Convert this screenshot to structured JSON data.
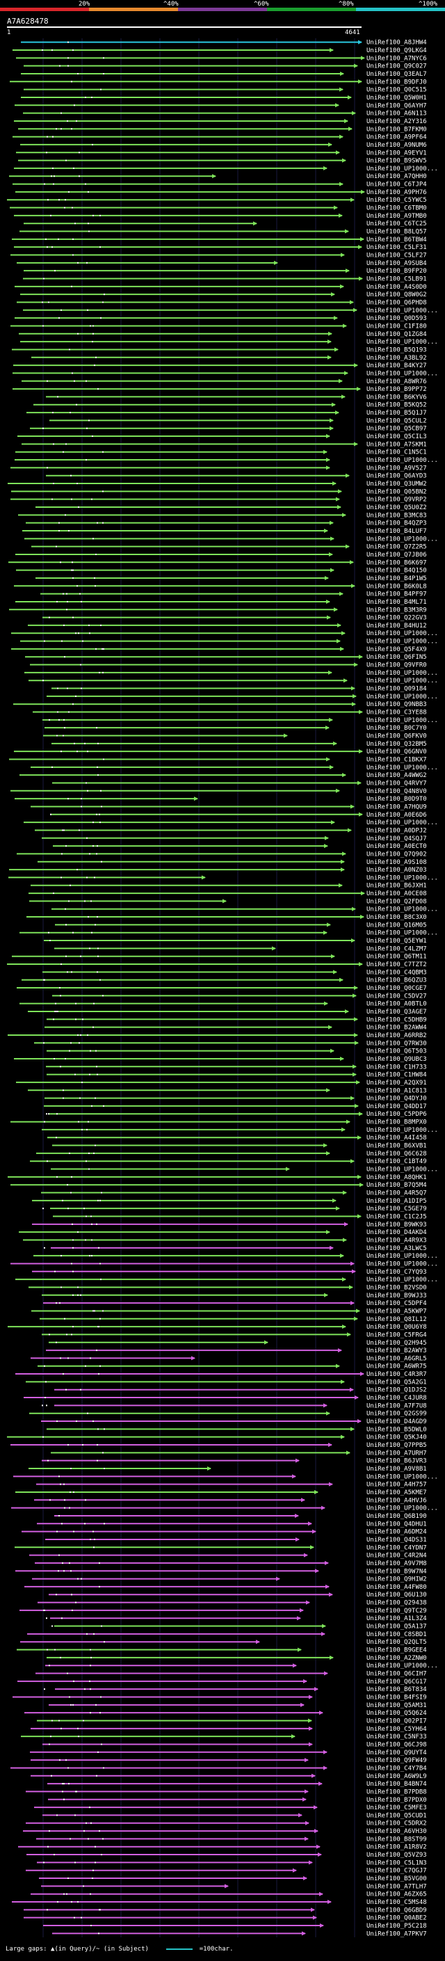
{
  "query": {
    "id": "A7A628478",
    "start": "1",
    "length": "4641"
  },
  "identity_scale": [
    {
      "label": "20%",
      "color": "#d8262a"
    },
    {
      "label": "^40%",
      "color": "#e6892e"
    },
    {
      "label": "^60%",
      "color": "#7d3a97"
    },
    {
      "label": "^80%",
      "color": "#1a9e2f"
    },
    {
      "label": "^100%",
      "color": "#25c2c6"
    }
  ],
  "colors": {
    "cyan": "#2ac8e0",
    "green": "#7ee35a",
    "magenta": "#d25fe0"
  },
  "footer": {
    "gaps_text": "Large gaps: ▲(in Query)/~ (in Subject)",
    "scale_text": "=100char."
  },
  "hits": [
    "UniRef100_A8JHW4",
    "UniRef100_Q9LKG4",
    "UniRef100_A7NYC6",
    "UniRef100_Q9C027",
    "UniRef100_Q3EAL7",
    "UniRef100_B9DFJ0",
    "UniRef100_Q0C515",
    "UniRef100_Q5W0H1",
    "UniRef100_Q6AYH7",
    "UniRef100_A6N113",
    "UniRef100_A2Y316",
    "UniRef100_B7FKM0",
    "UniRef100_A9PF64",
    "UniRef100_A9NUM6",
    "UniRef100_A9EYV1",
    "UniRef100_B9SWV5",
    "UniRef100_UP1000...",
    "UniRef100_A7QHH0",
    "UniRef100_C6TJP4",
    "UniRef100_A9PH76",
    "UniRef100_C5YWC5",
    "UniRef100_C6TBM0",
    "UniRef100_A9TMB0",
    "UniRef100_C6TC25",
    "UniRef100_B8LQ57",
    "UniRef100_B6TBW4",
    "UniRef100_C5LF31",
    "UniRef100_C5LF27",
    "UniRef100_A9SUB4",
    "UniRef100_B9FP20",
    "UniRef100_C5LB91",
    "UniRef100_A4S0D0",
    "UniRef100_Q8W0G2",
    "UniRef100_Q6PHD8",
    "UniRef100_UP1000...",
    "UniRef100_Q0D593",
    "UniRef100_C1FI80",
    "UniRef100_Q1ZG84",
    "UniRef100_UP1000...",
    "UniRef100_B5Q193",
    "UniRef100_A3BL92",
    "UniRef100_B4KY27",
    "UniRef100_UP1000...",
    "UniRef100_A8WR76",
    "UniRef100_B9PP72",
    "UniRef100_B6KYV6",
    "UniRef100_B5KQ52",
    "UniRef100_B5Q1J7",
    "UniRef100_Q5CUL2",
    "UniRef100_Q5CB97",
    "UniRef100_Q5CIL3",
    "UniRef100_A7SKM1",
    "UniRef100_C1N5C1",
    "UniRef100_UP1000...",
    "UniRef100_A9V527",
    "UniRef100_Q6AYD3",
    "UniRef100_Q3UMW2",
    "UniRef100_Q05BN2",
    "UniRef100_Q9VRP2",
    "UniRef100_Q5U0Z2",
    "UniRef100_B3MC83",
    "UniRef100_B4QZP3",
    "UniRef100_B4LUF7",
    "UniRef100_UP1000...",
    "UniRef100_Q7Z2R5",
    "UniRef100_Q7JB06",
    "UniRef100_B6K697",
    "UniRef100_B4Q150",
    "UniRef100_B4P1W5",
    "UniRef100_B6K0L8",
    "UniRef100_B4PF97",
    "UniRef100_B4ML71",
    "UniRef100_B3M3R9",
    "UniRef100_Q22GV3",
    "UniRef100_B4HU12",
    "UniRef100_UP1000...",
    "UniRef100_UP1000...",
    "UniRef100_Q5F4X9",
    "UniRef100_Q6FIN5",
    "UniRef100_Q9VFR0",
    "UniRef100_UP1000...",
    "UniRef100_UP1000...",
    "UniRef100_Q09184",
    "UniRef100_UP1000...",
    "UniRef100_Q9NBB3",
    "UniRef100_C3YE88",
    "UniRef100_UP1000...",
    "UniRef100_B0C7Y0",
    "UniRef100_Q6FKV0",
    "UniRef100_Q32BM5",
    "UniRef100_Q6GNV0",
    "UniRef100_C1BKX7",
    "UniRef100_UP1000...",
    "UniRef100_A4WWG2",
    "UniRef100_Q4RVY7",
    "UniRef100_Q4N8V0",
    "UniRef100_B0D9T0",
    "UniRef100_A7HQU9",
    "UniRef100_A0E6D6",
    "UniRef100_UP1000...",
    "UniRef100_A0DPJ2",
    "UniRef100_Q4SQJ7",
    "UniRef100_A0ECT0",
    "UniRef100_Q7Q902",
    "UniRef100_A9S108",
    "UniRef100_A0NZ03",
    "UniRef100_UP1000...",
    "UniRef100_B6JXH1",
    "UniRef100_A0CE08",
    "UniRef100_Q2FD08",
    "UniRef100_UP1000...",
    "UniRef100_B8C3X0",
    "UniRef100_Q16M05",
    "UniRef100_UP1000...",
    "UniRef100_Q5EYW1",
    "UniRef100_C4LZM7",
    "UniRef100_Q6TM11",
    "UniRef100_C7TZT2",
    "UniRef100_C4QBM3",
    "UniRef100_B6QZU3",
    "UniRef100_Q0CGE7",
    "UniRef100_C5DV27",
    "UniRef100_A0BTL0",
    "UniRef100_Q3AGE7",
    "UniRef100_C5DHB9",
    "UniRef100_B2AWW4",
    "UniRef100_A6RRB2",
    "UniRef100_Q7RW30",
    "UniRef100_Q6T503",
    "UniRef100_Q9UBC3",
    "UniRef100_C1H733",
    "UniRef100_C1HW84",
    "UniRef100_A2QX91",
    "UniRef100_A1C813",
    "UniRef100_Q4DYJ0",
    "UniRef100_Q4DD17",
    "UniRef100_C5PDP6",
    "UniRef100_B8MPX0",
    "UniRef100_UP1000...",
    "UniRef100_A4I458",
    "UniRef100_B6XVB1",
    "UniRef100_Q6C628",
    "UniRef100_C1BT49",
    "UniRef100_UP1000...",
    "UniRef100_A8QHK1",
    "UniRef100_B7Q5M4",
    "UniRef100_A4R5Q7",
    "UniRef100_A1DIP5",
    "UniRef100_C5GE79",
    "UniRef100_C1C2J5",
    "UniRef100_B9WK93",
    "UniRef100_D4AKD4",
    "UniRef100_A4R9X3",
    "UniRef100_A3LWC5",
    "UniRef100_UP1000...",
    "UniRef100_UP1000...",
    "UniRef100_C7YQ93",
    "UniRef100_UP1000...",
    "UniRef100_B2VSD0",
    "UniRef100_B9WJ33",
    "UniRef100_C5DPF4",
    "UniRef100_A5KWP7",
    "UniRef100_Q8IL12",
    "UniRef100_Q0U6Y8",
    "UniRef100_C5FRG4",
    "UniRef100_Q2H945",
    "UniRef100_B2AWY3",
    "UniRef100_A6GRL5",
    "UniRef100_A6WR75",
    "UniRef100_C4R3R7",
    "UniRef100_Q5A2G1",
    "UniRef100_Q1DJS2",
    "UniRef100_C4JUR8",
    "UniRef100_A7F7U8",
    "UniRef100_Q2GS99",
    "UniRef100_D4AGD9",
    "UniRef100_B5DWL0",
    "UniRef100_Q5KJ40",
    "UniRef100_Q7PPB5",
    "UniRef100_A7URH7",
    "UniRef100_B6JVR3",
    "UniRef100_A9V8B1",
    "UniRef100_UP1000...",
    "UniRef100_A4H757",
    "UniRef100_A5KME7",
    "UniRef100_A4HVJ6",
    "UniRef100_UP1000...",
    "UniRef100_Q6B190",
    "UniRef100_Q4DHU1",
    "UniRef100_A6DM24",
    "UniRef100_Q4DS31",
    "UniRef100_C4YDN7",
    "UniRef100_C4R2N4",
    "UniRef100_A9V7M8",
    "UniRef100_B9W7N4",
    "UniRef100_Q9HIW2",
    "UniRef100_A4FW80",
    "UniRef100_Q6U130",
    "UniRef100_Q29438",
    "UniRef100_Q9TC29",
    "UniRef100_A1L3Z4",
    "UniRef100_Q5A137",
    "UniRef100_C8SBD1",
    "UniRef100_Q2QLT5",
    "UniRef100_B9GEE4",
    "UniRef100_A2ZNW0",
    "UniRef100_UP1000...",
    "UniRef100_Q6CIH7",
    "UniRef100_Q6CG17",
    "UniRef100_B6T834",
    "UniRef100_B4FSI9",
    "UniRef100_Q5AM31",
    "UniRef100_Q5Q624",
    "UniRef100_Q02PI7",
    "UniRef100_C5YH64",
    "UniRef100_C5NF33",
    "UniRef100_Q6CJ98",
    "UniRef100_Q9UYT4",
    "UniRef100_Q9FW49",
    "UniRef100_C4Y7B4",
    "UniRef100_A6W9L9",
    "UniRef100_B4BN74",
    "UniRef100_B7PDB8",
    "UniRef100_B7PDX0",
    "UniRef100_C5MFE3",
    "UniRef100_Q5CUD1",
    "UniRef100_C5DRX2",
    "UniRef100_A6VH30",
    "UniRef100_B8ST99",
    "UniRef100_A1R8V2",
    "UniRef100_Q5VZ93",
    "UniRef100_C5L1N3",
    "UniRef100_C7QGJ7",
    "UniRef100_B5VG00",
    "UniRef100_A7TLH7",
    "UniRef100_A6ZX65",
    "UniRef100_C5MS48",
    "UniRef100_Q6GBD9",
    "UniRef100_Q0ABE2",
    "UniRef100_P5C218",
    "UniRef100_A7PKV7"
  ]
}
